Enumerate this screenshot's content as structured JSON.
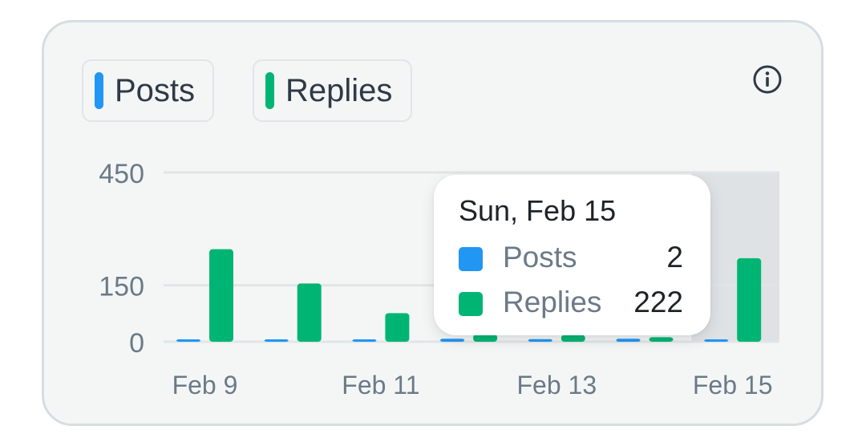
{
  "legend": {
    "posts_label": "Posts",
    "replies_label": "Replies"
  },
  "icons": {
    "info": "info-circle-icon"
  },
  "colors": {
    "posts": "#2196f3",
    "replies": "#00b574",
    "axis_text": "#6b7a88",
    "grid": "#e0e5e8"
  },
  "tooltip": {
    "date": "Sun, Feb 15",
    "rows": [
      {
        "label": "Posts",
        "value": "2"
      },
      {
        "label": "Replies",
        "value": "222"
      }
    ]
  },
  "chart_data": {
    "type": "bar",
    "categories": [
      "Feb 9",
      "Feb 10",
      "Feb 11",
      "Feb 12",
      "Feb 13",
      "Feb 14",
      "Feb 15"
    ],
    "x_tick_labels": [
      "Feb 9",
      "Feb 11",
      "Feb 13",
      "Feb 15"
    ],
    "y_ticks": [
      0,
      150,
      450
    ],
    "ylim": [
      0,
      450
    ],
    "series": [
      {
        "name": "Posts",
        "values": [
          5,
          4,
          3,
          8,
          7,
          8,
          2
        ]
      },
      {
        "name": "Replies",
        "values": [
          246,
          155,
          76,
          20,
          18,
          12,
          222
        ]
      }
    ],
    "highlighted_category": "Feb 15",
    "grid": true,
    "legend_position": "top-left"
  }
}
